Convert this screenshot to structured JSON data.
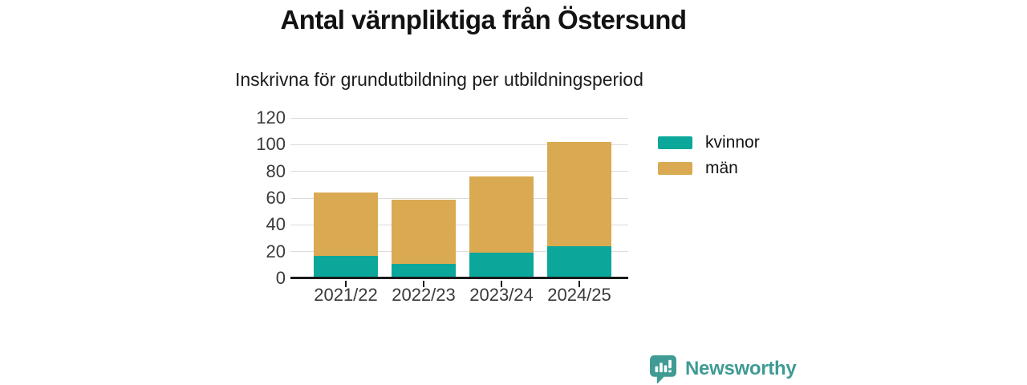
{
  "chart_data": {
    "type": "bar",
    "stacked": true,
    "title": "Antal värnpliktiga från Östersund",
    "subtitle": "Inskrivna för grundutbildning per utbildningsperiod",
    "categories": [
      "2021/22",
      "2022/23",
      "2023/24",
      "2024/25"
    ],
    "series": [
      {
        "name": "kvinnor",
        "color": "#0ba79a",
        "values": [
          17,
          11,
          19,
          24
        ]
      },
      {
        "name": "män",
        "color": "#d9aa52",
        "values": [
          47,
          48,
          57,
          78
        ]
      }
    ],
    "stack_totals": [
      64,
      59,
      76,
      102
    ],
    "ylim": [
      0,
      120
    ],
    "yticks": [
      0,
      20,
      40,
      60,
      80,
      100,
      120
    ],
    "grid": true,
    "legend_position": "right-top",
    "xlabel": "",
    "ylabel": ""
  },
  "branding": {
    "logo_text": "Newsworthy",
    "logo_color": "#3f9b93",
    "icon": "chart-speech-bubble-icon"
  },
  "colors": {
    "background": "#ffffff",
    "gridline": "#dcdcdc",
    "axis": "#1b1b1b",
    "tick_text": "#3a3a3a"
  }
}
